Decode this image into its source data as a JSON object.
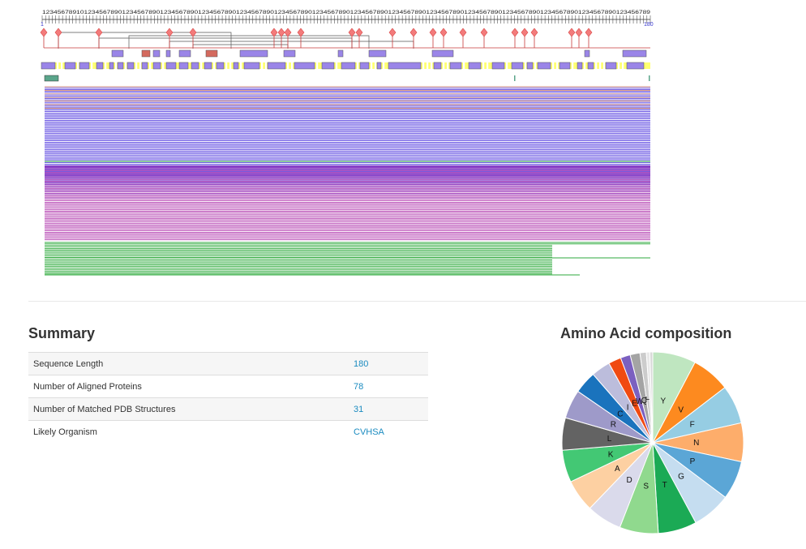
{
  "viewer": {
    "ruler_digits": "1234567891012345678901234567890123456789012345678901234567890123456789012345678901234567890123456789012345678901234567890123456789012345678901234567890123456789",
    "start_label": "1",
    "end_label": "180",
    "colors": {
      "diamond": "#f37b7b",
      "diamond_stroke": "#d84040",
      "domain_purple": "#9a85e8",
      "domain_red": "#d46a5e",
      "ss_yellow": "#ffff73",
      "teal": "#5aa58a",
      "align_blue": "#5b46e0",
      "align_orange": "#f0a060",
      "align_magenta": "#b23caf",
      "align_green": "#2eaa3c"
    }
  },
  "summary": {
    "title": "Summary",
    "rows": [
      {
        "label": "Sequence Length",
        "value": "180"
      },
      {
        "label": "Number of Aligned Proteins",
        "value": "78"
      },
      {
        "label": "Number of Matched PDB Structures",
        "value": "31"
      },
      {
        "label": "Likely Organism",
        "value": "CVHSA"
      }
    ]
  },
  "amino": {
    "title": "Amino Acid composition",
    "chart_data": {
      "type": "pie",
      "slices": [
        {
          "label": "Y",
          "value": 7.5,
          "color": "#bfe6c0"
        },
        {
          "label": "V",
          "value": 6.7,
          "color": "#fd8a1f"
        },
        {
          "label": "F",
          "value": 6.7,
          "color": "#96cde3"
        },
        {
          "label": "N",
          "value": 6.7,
          "color": "#fdad6b"
        },
        {
          "label": "P",
          "value": 6.7,
          "color": "#5ba6d6"
        },
        {
          "label": "G",
          "value": 6.7,
          "color": "#c5ddf0"
        },
        {
          "label": "T",
          "value": 6.7,
          "color": "#1baa55"
        },
        {
          "label": "S",
          "value": 6.7,
          "color": "#90d98e"
        },
        {
          "label": "D",
          "value": 6.1,
          "color": "#dadaeb"
        },
        {
          "label": "A",
          "value": 5.6,
          "color": "#fdd0a2"
        },
        {
          "label": "K",
          "value": 5.6,
          "color": "#43c874"
        },
        {
          "label": "L",
          "value": 5.6,
          "color": "#636363"
        },
        {
          "label": "R",
          "value": 5.0,
          "color": "#9e9ac9"
        },
        {
          "label": "C",
          "value": 3.9,
          "color": "#1a73bd"
        },
        {
          "label": "I",
          "value": 3.3,
          "color": "#bcbddc"
        },
        {
          "label": "E",
          "value": 2.2,
          "color": "#f04a12"
        },
        {
          "label": "W",
          "value": 1.7,
          "color": "#7b60c0"
        },
        {
          "label": "Q",
          "value": 1.7,
          "color": "#a4a4a4"
        },
        {
          "label": "H",
          "value": 1.1,
          "color": "#cccccc"
        },
        {
          "label": "",
          "value": 0.6,
          "color": "#e8e8e8"
        },
        {
          "label": "",
          "value": 0.5,
          "color": "#d9d9d9"
        }
      ]
    }
  }
}
